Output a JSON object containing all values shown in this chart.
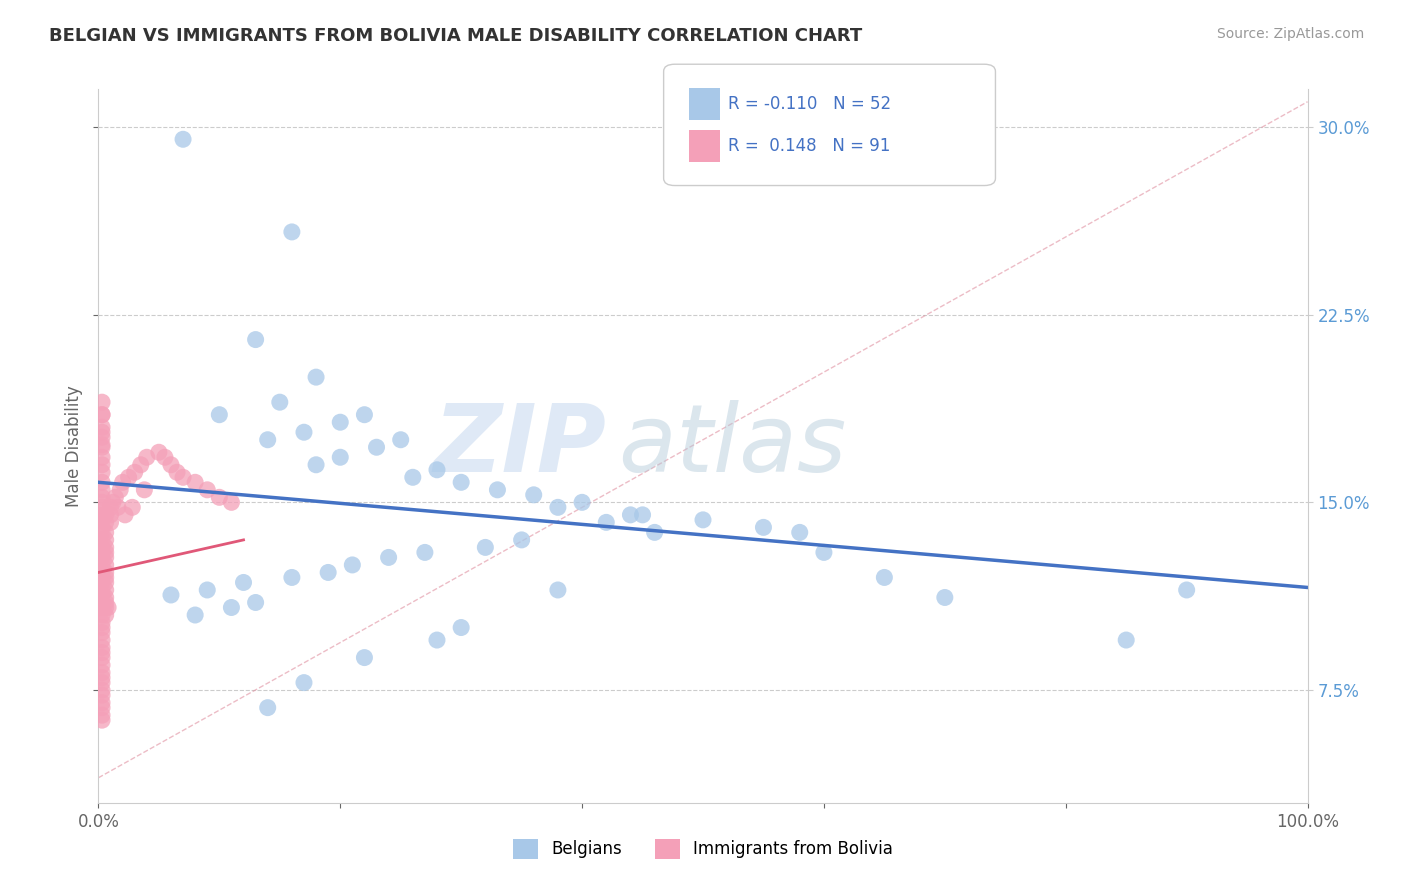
{
  "title": "BELGIAN VS IMMIGRANTS FROM BOLIVIA MALE DISABILITY CORRELATION CHART",
  "source": "Source: ZipAtlas.com",
  "ylabel": "Male Disability",
  "yticks": [
    0.075,
    0.15,
    0.225,
    0.3
  ],
  "ytick_labels": [
    "7.5%",
    "15.0%",
    "22.5%",
    "30.0%"
  ],
  "xmin": 0.0,
  "xmax": 1.0,
  "ymin": 0.03,
  "ymax": 0.315,
  "color_belgian": "#a8c8e8",
  "color_bolivia": "#f4a0b8",
  "color_trend_belgian": "#4472c4",
  "color_trend_bolivia": "#e05878",
  "color_diag": "#e090a0",
  "watermark_zip": "ZIP",
  "watermark_atlas": "atlas",
  "legend_text1": "R = -0.110   N = 52",
  "legend_text2": "R =  0.148   N = 91",
  "belgian_x": [
    0.07,
    0.16,
    0.13,
    0.1,
    0.18,
    0.15,
    0.22,
    0.2,
    0.17,
    0.14,
    0.25,
    0.23,
    0.2,
    0.18,
    0.28,
    0.26,
    0.3,
    0.33,
    0.36,
    0.4,
    0.38,
    0.44,
    0.5,
    0.55,
    0.58,
    0.42,
    0.46,
    0.35,
    0.32,
    0.27,
    0.24,
    0.21,
    0.19,
    0.16,
    0.12,
    0.09,
    0.06,
    0.13,
    0.11,
    0.08,
    0.6,
    0.65,
    0.7,
    0.85,
    0.9,
    0.3,
    0.28,
    0.22,
    0.17,
    0.14,
    0.38,
    0.45
  ],
  "belgian_y": [
    0.295,
    0.258,
    0.215,
    0.185,
    0.2,
    0.19,
    0.185,
    0.182,
    0.178,
    0.175,
    0.175,
    0.172,
    0.168,
    0.165,
    0.163,
    0.16,
    0.158,
    0.155,
    0.153,
    0.15,
    0.148,
    0.145,
    0.143,
    0.14,
    0.138,
    0.142,
    0.138,
    0.135,
    0.132,
    0.13,
    0.128,
    0.125,
    0.122,
    0.12,
    0.118,
    0.115,
    0.113,
    0.11,
    0.108,
    0.105,
    0.13,
    0.12,
    0.112,
    0.095,
    0.115,
    0.1,
    0.095,
    0.088,
    0.078,
    0.068,
    0.115,
    0.145
  ],
  "bolivia_x": [
    0.003,
    0.003,
    0.003,
    0.003,
    0.003,
    0.003,
    0.003,
    0.003,
    0.003,
    0.003,
    0.003,
    0.003,
    0.003,
    0.003,
    0.003,
    0.003,
    0.003,
    0.003,
    0.003,
    0.003,
    0.003,
    0.003,
    0.003,
    0.003,
    0.003,
    0.003,
    0.003,
    0.003,
    0.003,
    0.003,
    0.003,
    0.003,
    0.003,
    0.003,
    0.003,
    0.003,
    0.003,
    0.003,
    0.003,
    0.003,
    0.003,
    0.003,
    0.003,
    0.003,
    0.003,
    0.003,
    0.003,
    0.003,
    0.003,
    0.003,
    0.006,
    0.006,
    0.006,
    0.006,
    0.006,
    0.006,
    0.006,
    0.006,
    0.006,
    0.006,
    0.006,
    0.006,
    0.006,
    0.006,
    0.006,
    0.006,
    0.01,
    0.01,
    0.01,
    0.012,
    0.014,
    0.016,
    0.018,
    0.02,
    0.025,
    0.03,
    0.035,
    0.04,
    0.05,
    0.055,
    0.06,
    0.065,
    0.07,
    0.08,
    0.09,
    0.1,
    0.11,
    0.022,
    0.028,
    0.038,
    0.008
  ],
  "bolivia_y": [
    0.19,
    0.185,
    0.178,
    0.172,
    0.168,
    0.165,
    0.162,
    0.158,
    0.155,
    0.152,
    0.15,
    0.148,
    0.145,
    0.143,
    0.14,
    0.138,
    0.135,
    0.132,
    0.13,
    0.128,
    0.125,
    0.122,
    0.12,
    0.118,
    0.115,
    0.113,
    0.11,
    0.108,
    0.105,
    0.102,
    0.1,
    0.098,
    0.095,
    0.092,
    0.09,
    0.088,
    0.085,
    0.082,
    0.08,
    0.078,
    0.075,
    0.073,
    0.07,
    0.068,
    0.065,
    0.063,
    0.185,
    0.18,
    0.176,
    0.173,
    0.145,
    0.142,
    0.138,
    0.135,
    0.132,
    0.13,
    0.128,
    0.125,
    0.122,
    0.12,
    0.118,
    0.115,
    0.112,
    0.11,
    0.108,
    0.105,
    0.148,
    0.145,
    0.142,
    0.15,
    0.152,
    0.148,
    0.155,
    0.158,
    0.16,
    0.162,
    0.165,
    0.168,
    0.17,
    0.168,
    0.165,
    0.162,
    0.16,
    0.158,
    0.155,
    0.152,
    0.15,
    0.145,
    0.148,
    0.155,
    0.108
  ],
  "trend_belgian_x0": 0.0,
  "trend_belgian_y0": 0.158,
  "trend_belgian_x1": 1.0,
  "trend_belgian_y1": 0.116,
  "trend_bolivia_x0": 0.0,
  "trend_bolivia_y0": 0.122,
  "trend_bolivia_x1": 0.12,
  "trend_bolivia_y1": 0.135
}
